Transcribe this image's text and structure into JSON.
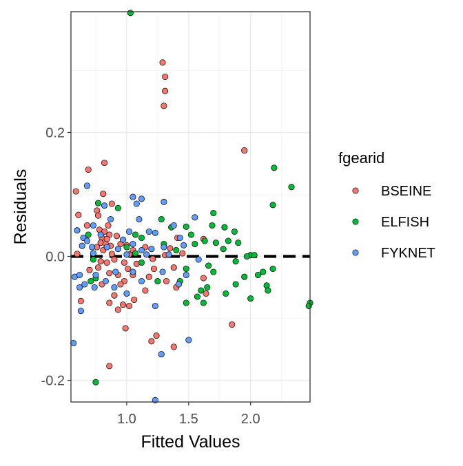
{
  "chart_data": {
    "type": "scatter",
    "xlabel": "Fitted Values",
    "ylabel": "Residuals",
    "xlim": [
      0.55,
      2.48
    ],
    "ylim": [
      -0.235,
      0.395
    ],
    "x_ticks": [
      1.0,
      1.5,
      2.0
    ],
    "x_tick_labels": [
      "1.0",
      "1.5",
      "2.0"
    ],
    "y_ticks": [
      -0.2,
      0.0,
      0.2
    ],
    "y_tick_labels": [
      "-0.2",
      "0.0",
      "0.2"
    ],
    "x_minor_ticks": [
      0.75,
      1.25,
      1.75,
      2.25
    ],
    "y_minor_ticks": [
      -0.1,
      0.1,
      0.3
    ],
    "grid": true,
    "reference_line": {
      "y": 0,
      "style": "dashed",
      "color": "#000000"
    },
    "legend": {
      "title": "fgearid",
      "position": "right"
    },
    "series": [
      {
        "name": "BSEINE",
        "color": "#F8766D",
        "points": [
          [
            1.29,
            0.313
          ],
          [
            1.31,
            0.29
          ],
          [
            1.31,
            0.267
          ],
          [
            1.3,
            0.243
          ],
          [
            1.95,
            0.171
          ],
          [
            0.82,
            0.151
          ],
          [
            0.69,
            0.14
          ],
          [
            0.59,
            0.105
          ],
          [
            0.81,
            0.101
          ],
          [
            0.88,
            0.085
          ],
          [
            0.76,
            0.074
          ],
          [
            0.61,
            0.067
          ],
          [
            0.77,
            0.066
          ],
          [
            0.68,
            0.05
          ],
          [
            0.85,
            0.05
          ],
          [
            0.78,
            0.043
          ],
          [
            0.82,
            0.04
          ],
          [
            0.86,
            0.035
          ],
          [
            0.92,
            0.033
          ],
          [
            0.8,
            0.03
          ],
          [
            0.84,
            0.028
          ],
          [
            0.79,
            0.022
          ],
          [
            0.83,
            0.02
          ],
          [
            0.87,
            0.017
          ],
          [
            0.95,
            0.02
          ],
          [
            1.0,
            0.018
          ],
          [
            0.76,
            0.015
          ],
          [
            0.81,
            0.01
          ],
          [
            1.05,
            0.01
          ],
          [
            1.15,
            0.015
          ],
          [
            1.35,
            0.013
          ],
          [
            1.41,
            0.03
          ],
          [
            1.62,
            0.028
          ],
          [
            0.6,
            0.004
          ],
          [
            0.88,
            0.004
          ],
          [
            1.02,
            0.003
          ],
          [
            1.31,
            0.002
          ],
          [
            1.45,
            0.005
          ],
          [
            1.21,
            -0.004
          ],
          [
            0.9,
            -0.005
          ],
          [
            0.79,
            -0.008
          ],
          [
            0.84,
            -0.01
          ],
          [
            0.98,
            -0.01
          ],
          [
            1.08,
            -0.012
          ],
          [
            0.77,
            -0.018
          ],
          [
            1.01,
            -0.02
          ],
          [
            1.22,
            -0.02
          ],
          [
            1.38,
            -0.018
          ],
          [
            0.7,
            -0.022
          ],
          [
            0.86,
            -0.027
          ],
          [
            0.93,
            -0.03
          ],
          [
            1.05,
            -0.03
          ],
          [
            1.18,
            -0.033
          ],
          [
            0.98,
            -0.04
          ],
          [
            1.32,
            -0.04
          ],
          [
            1.62,
            -0.035
          ],
          [
            0.8,
            -0.045
          ],
          [
            0.95,
            -0.045
          ],
          [
            1.4,
            -0.05
          ],
          [
            1.15,
            -0.055
          ],
          [
            0.9,
            -0.063
          ],
          [
            0.63,
            -0.072
          ],
          [
            0.86,
            -0.075
          ],
          [
            0.97,
            -0.078
          ],
          [
            1.02,
            -0.08
          ],
          [
            0.93,
            -0.086
          ],
          [
            1.06,
            -0.07
          ],
          [
            1.85,
            -0.11
          ],
          [
            0.99,
            -0.116
          ],
          [
            1.24,
            -0.128
          ],
          [
            1.2,
            -0.137
          ],
          [
            1.38,
            -0.146
          ],
          [
            0.86,
            -0.177
          ],
          [
            1.64,
            -0.06
          ]
        ]
      },
      {
        "name": "ELFISH",
        "color": "#00BA38",
        "points": [
          [
            1.03,
            0.393
          ],
          [
            2.19,
            0.143
          ],
          [
            2.33,
            0.112
          ],
          [
            2.18,
            0.083
          ],
          [
            0.77,
            0.086
          ],
          [
            0.93,
            0.078
          ],
          [
            1.7,
            0.07
          ],
          [
            1.28,
            0.06
          ],
          [
            1.69,
            0.05
          ],
          [
            1.48,
            0.048
          ],
          [
            1.79,
            0.047
          ],
          [
            1.36,
            0.047
          ],
          [
            1.87,
            0.04
          ],
          [
            0.69,
            0.035
          ],
          [
            1.07,
            0.035
          ],
          [
            1.52,
            0.035
          ],
          [
            1.12,
            0.03
          ],
          [
            1.63,
            0.025
          ],
          [
            1.82,
            0.025
          ],
          [
            1.9,
            0.022
          ],
          [
            1.72,
            0.022
          ],
          [
            1.55,
            0.02
          ],
          [
            1.3,
            0.02
          ],
          [
            1.0,
            0.015
          ],
          [
            1.78,
            0.012
          ],
          [
            1.4,
            0.01
          ],
          [
            1.07,
            0.005
          ],
          [
            2.0,
            0.002
          ],
          [
            2.03,
            0.002
          ],
          [
            1.97,
            0.0
          ],
          [
            0.73,
            -0.005
          ],
          [
            1.88,
            -0.008
          ],
          [
            1.12,
            -0.01
          ],
          [
            1.66,
            -0.015
          ],
          [
            1.48,
            -0.02
          ],
          [
            1.7,
            -0.025
          ],
          [
            2.18,
            -0.02
          ],
          [
            2.1,
            -0.025
          ],
          [
            2.06,
            -0.03
          ],
          [
            1.95,
            -0.033
          ],
          [
            0.75,
            -0.035
          ],
          [
            0.71,
            -0.04
          ],
          [
            1.25,
            -0.04
          ],
          [
            1.43,
            -0.04
          ],
          [
            1.88,
            -0.045
          ],
          [
            2.13,
            -0.047
          ],
          [
            1.65,
            -0.05
          ],
          [
            1.6,
            -0.055
          ],
          [
            2.14,
            -0.055
          ],
          [
            1.8,
            -0.06
          ],
          [
            1.57,
            -0.065
          ],
          [
            2.0,
            -0.068
          ],
          [
            1.48,
            -0.075
          ],
          [
            1.62,
            -0.075
          ],
          [
            2.48,
            -0.075
          ],
          [
            2.47,
            -0.08
          ],
          [
            0.75,
            -0.203
          ]
        ]
      },
      {
        "name": "FYKNET",
        "color": "#619CFF",
        "points": [
          [
            0.68,
            0.114
          ],
          [
            1.05,
            0.096
          ],
          [
            1.12,
            0.093
          ],
          [
            1.08,
            0.085
          ],
          [
            1.3,
            0.088
          ],
          [
            0.82,
            0.082
          ],
          [
            0.6,
            0.042
          ],
          [
            0.73,
            0.05
          ],
          [
            1.38,
            0.05
          ],
          [
            1.55,
            0.063
          ],
          [
            1.1,
            0.06
          ],
          [
            0.87,
            0.06
          ],
          [
            0.65,
            0.03
          ],
          [
            0.68,
            0.025
          ],
          [
            0.79,
            0.035
          ],
          [
            1.02,
            0.04
          ],
          [
            1.18,
            0.04
          ],
          [
            1.23,
            0.038
          ],
          [
            1.43,
            0.03
          ],
          [
            0.97,
            0.027
          ],
          [
            1.05,
            0.02
          ],
          [
            0.64,
            0.017
          ],
          [
            0.72,
            0.015
          ],
          [
            0.84,
            0.015
          ],
          [
            0.93,
            0.012
          ],
          [
            1.12,
            0.01
          ],
          [
            1.2,
            0.012
          ],
          [
            1.3,
            0.015
          ],
          [
            1.46,
            0.018
          ],
          [
            0.73,
            0.005
          ],
          [
            1.0,
            0.003
          ],
          [
            1.16,
            0.003
          ],
          [
            1.34,
            0.003
          ],
          [
            1.58,
            -0.005
          ],
          [
            0.58,
            -0.033
          ],
          [
            0.62,
            -0.03
          ],
          [
            0.75,
            -0.03
          ],
          [
            0.91,
            -0.025
          ],
          [
            1.05,
            -0.025
          ],
          [
            1.29,
            -0.025
          ],
          [
            1.48,
            -0.03
          ],
          [
            0.66,
            -0.045
          ],
          [
            0.83,
            -0.04
          ],
          [
            1.12,
            -0.04
          ],
          [
            1.42,
            -0.045
          ],
          [
            0.62,
            -0.05
          ],
          [
            0.74,
            -0.05
          ],
          [
            0.9,
            -0.05
          ],
          [
            1.0,
            -0.06
          ],
          [
            1.23,
            -0.08
          ],
          [
            0.63,
            -0.088
          ],
          [
            0.57,
            -0.14
          ],
          [
            1.28,
            -0.158
          ],
          [
            1.5,
            -0.135
          ],
          [
            1.23,
            -0.232
          ]
        ]
      }
    ]
  }
}
